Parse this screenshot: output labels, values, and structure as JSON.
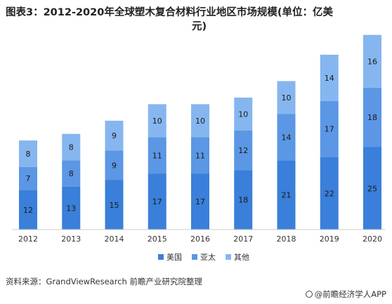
{
  "title": {
    "line1": "图表3：2012-2020年全球塑木复合材料行业地区市场规模(单位：亿美",
    "line2": "元)"
  },
  "colors": {
    "usa": "#3a7fd9",
    "apac": "#5b97e4",
    "other": "#86b6ef"
  },
  "chart_data": {
    "type": "bar",
    "stacked": true,
    "categories": [
      "2012",
      "2013",
      "2014",
      "2015",
      "2016",
      "2017",
      "2018",
      "2019",
      "2020"
    ],
    "series": [
      {
        "name": "美国",
        "values": [
          12,
          13,
          15,
          17,
          17,
          18,
          21,
          22,
          25
        ]
      },
      {
        "name": "亚太",
        "values": [
          7,
          8,
          9,
          11,
          11,
          12,
          14,
          17,
          18
        ]
      },
      {
        "name": "其他",
        "values": [
          8,
          8,
          9,
          10,
          10,
          10,
          10,
          14,
          16
        ]
      }
    ],
    "ylim": [
      0,
      60
    ],
    "grid": false,
    "legend_position": "bottom"
  },
  "legend": {
    "items": [
      "美国",
      "亚太",
      "其他"
    ]
  },
  "footer": {
    "source": "资料来源：GrandViewResearch 前瞻产业研究院整理",
    "brand": "@前瞻经济学人APP"
  }
}
